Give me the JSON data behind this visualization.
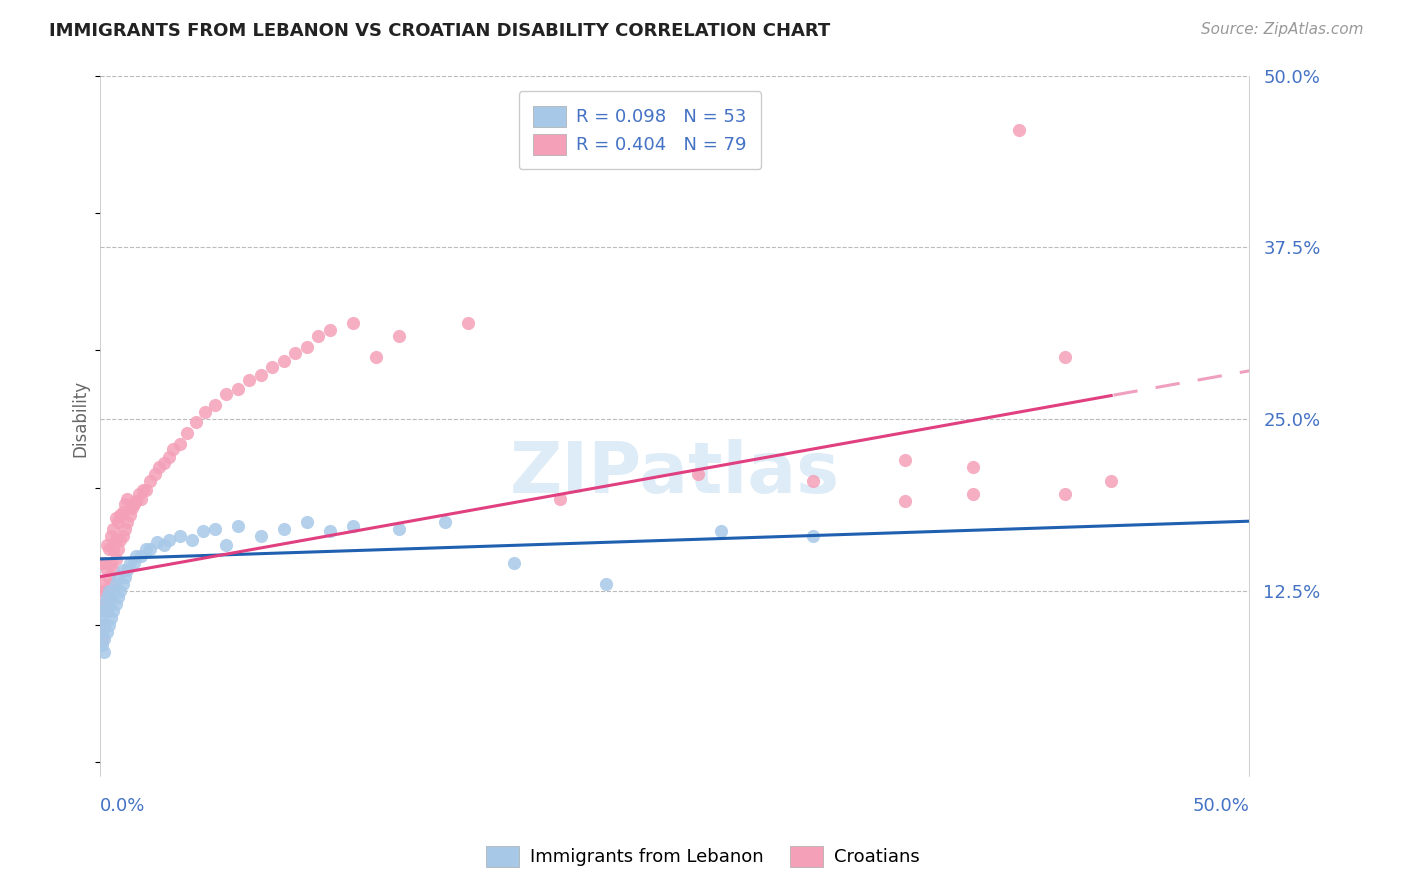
{
  "title": "IMMIGRANTS FROM LEBANON VS CROATIAN DISABILITY CORRELATION CHART",
  "source": "Source: ZipAtlas.com",
  "ylabel": "Disability",
  "xlim": [
    0.0,
    0.5
  ],
  "ylim": [
    0.0,
    0.5
  ],
  "ytick_labels": [
    "12.5%",
    "25.0%",
    "37.5%",
    "50.0%"
  ],
  "ytick_positions": [
    0.125,
    0.25,
    0.375,
    0.5
  ],
  "legend_r1": "R = 0.098",
  "legend_n1": "N = 53",
  "legend_r2": "R = 0.404",
  "legend_n2": "N = 79",
  "color_blue": "#a8c8e8",
  "color_pink": "#f4a0b8",
  "line_blue": "#2060b0",
  "line_pink": "#e04080",
  "text_color": "#4472c4",
  "watermark": "ZIPatlas",
  "leb_intercept": 0.148,
  "leb_slope": 0.055,
  "cro_intercept": 0.135,
  "cro_slope": 0.3,
  "leb_x": [
    0.001,
    0.001,
    0.001,
    0.001,
    0.002,
    0.002,
    0.002,
    0.002,
    0.003,
    0.003,
    0.003,
    0.004,
    0.004,
    0.004,
    0.005,
    0.005,
    0.006,
    0.006,
    0.007,
    0.007,
    0.008,
    0.008,
    0.009,
    0.01,
    0.01,
    0.011,
    0.012,
    0.013,
    0.015,
    0.016,
    0.018,
    0.02,
    0.022,
    0.025,
    0.028,
    0.03,
    0.035,
    0.04,
    0.045,
    0.05,
    0.055,
    0.06,
    0.07,
    0.08,
    0.09,
    0.1,
    0.11,
    0.13,
    0.15,
    0.18,
    0.22,
    0.27,
    0.31
  ],
  "leb_y": [
    0.085,
    0.095,
    0.105,
    0.11,
    0.08,
    0.09,
    0.1,
    0.115,
    0.095,
    0.11,
    0.12,
    0.1,
    0.115,
    0.125,
    0.105,
    0.12,
    0.11,
    0.125,
    0.115,
    0.13,
    0.12,
    0.135,
    0.125,
    0.13,
    0.14,
    0.135,
    0.14,
    0.145,
    0.145,
    0.15,
    0.15,
    0.155,
    0.155,
    0.16,
    0.158,
    0.162,
    0.165,
    0.162,
    0.168,
    0.17,
    0.158,
    0.172,
    0.165,
    0.17,
    0.175,
    0.168,
    0.172,
    0.17,
    0.175,
    0.145,
    0.13,
    0.168,
    0.165
  ],
  "cro_x": [
    0.001,
    0.001,
    0.001,
    0.001,
    0.001,
    0.002,
    0.002,
    0.002,
    0.002,
    0.003,
    0.003,
    0.003,
    0.003,
    0.004,
    0.004,
    0.004,
    0.005,
    0.005,
    0.005,
    0.006,
    0.006,
    0.006,
    0.007,
    0.007,
    0.007,
    0.008,
    0.008,
    0.009,
    0.009,
    0.01,
    0.01,
    0.011,
    0.011,
    0.012,
    0.012,
    0.013,
    0.014,
    0.015,
    0.016,
    0.017,
    0.018,
    0.019,
    0.02,
    0.022,
    0.024,
    0.026,
    0.028,
    0.03,
    0.032,
    0.035,
    0.038,
    0.042,
    0.046,
    0.05,
    0.055,
    0.06,
    0.065,
    0.07,
    0.075,
    0.08,
    0.085,
    0.09,
    0.095,
    0.1,
    0.11,
    0.12,
    0.13,
    0.16,
    0.2,
    0.26,
    0.31,
    0.35,
    0.38,
    0.4,
    0.42,
    0.44,
    0.35,
    0.38,
    0.42
  ],
  "cro_y": [
    0.09,
    0.1,
    0.115,
    0.13,
    0.145,
    0.1,
    0.115,
    0.125,
    0.145,
    0.11,
    0.125,
    0.14,
    0.158,
    0.12,
    0.135,
    0.155,
    0.13,
    0.145,
    0.165,
    0.14,
    0.155,
    0.17,
    0.148,
    0.162,
    0.178,
    0.155,
    0.175,
    0.162,
    0.18,
    0.165,
    0.182,
    0.17,
    0.188,
    0.175,
    0.192,
    0.18,
    0.185,
    0.188,
    0.19,
    0.195,
    0.192,
    0.198,
    0.198,
    0.205,
    0.21,
    0.215,
    0.218,
    0.222,
    0.228,
    0.232,
    0.24,
    0.248,
    0.255,
    0.26,
    0.268,
    0.272,
    0.278,
    0.282,
    0.288,
    0.292,
    0.298,
    0.302,
    0.31,
    0.315,
    0.32,
    0.295,
    0.31,
    0.32,
    0.192,
    0.21,
    0.205,
    0.22,
    0.195,
    0.46,
    0.295,
    0.205,
    0.19,
    0.215,
    0.195
  ]
}
